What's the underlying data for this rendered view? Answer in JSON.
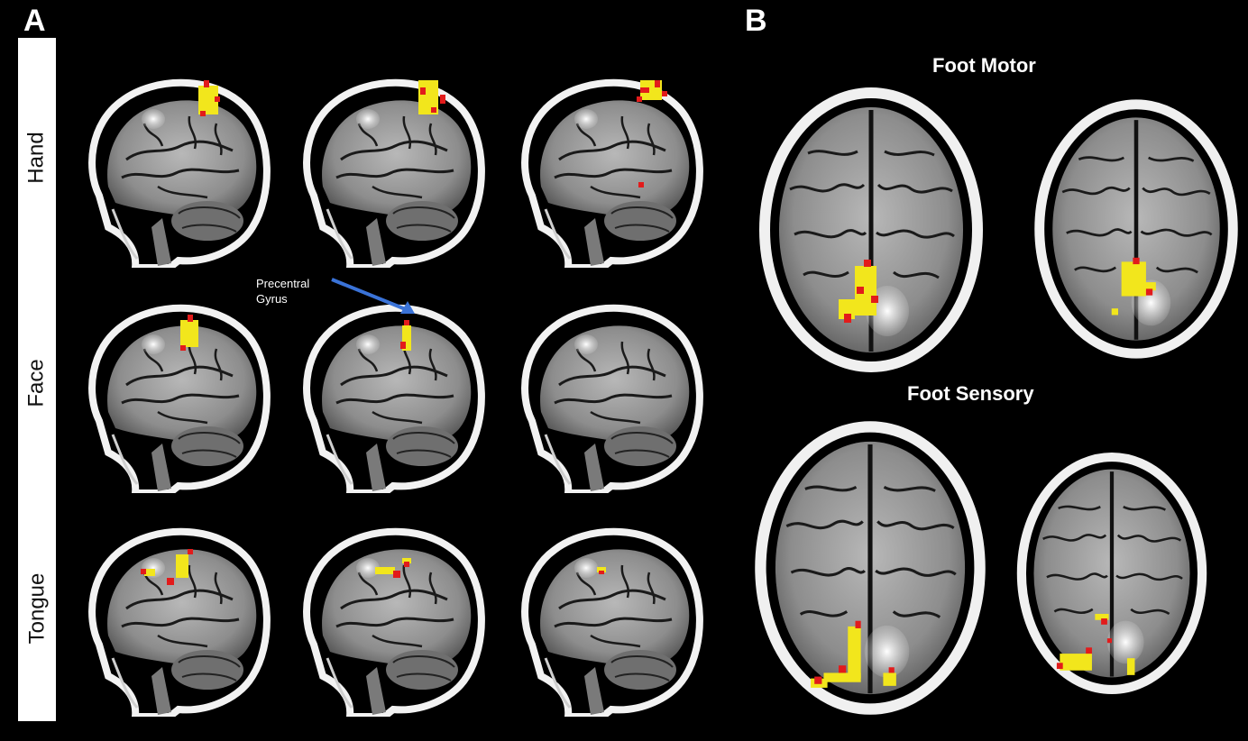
{
  "panel_a": {
    "letter": "A",
    "rows": [
      "Hand",
      "Face",
      "Tongue"
    ],
    "annotation": {
      "line1": "Precentral",
      "line2": "Gyrus"
    }
  },
  "panel_b": {
    "letter": "B",
    "titles": [
      "Foot  Motor",
      "Foot Sensory"
    ]
  },
  "colors": {
    "background": "#000000",
    "activation_primary": "#f2e61c",
    "activation_secondary": "#e21b1b",
    "arrow": "#3a73d8",
    "label_strip": "#ffffff"
  }
}
